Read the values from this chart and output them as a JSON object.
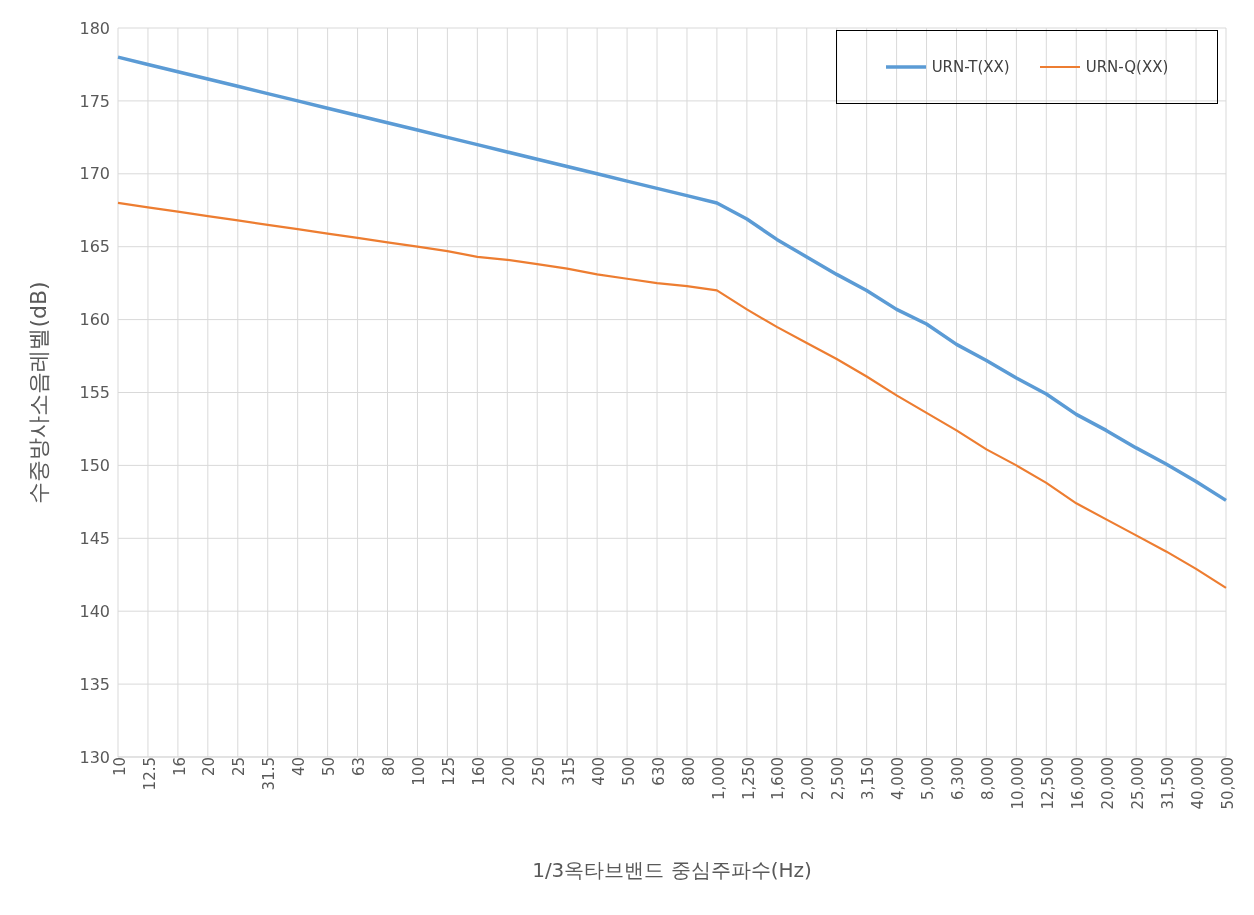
{
  "chart_data": {
    "type": "line",
    "xlabel": "1/3옥타브밴드 중심주파수(Hz)",
    "ylabel": "수중방사소음레벨(dB)",
    "categories": [
      "10",
      "12.5",
      "16",
      "20",
      "25",
      "31.5",
      "40",
      "50",
      "63",
      "80",
      "100",
      "125",
      "160",
      "200",
      "250",
      "315",
      "400",
      "500",
      "630",
      "800",
      "1,000",
      "1,250",
      "1,600",
      "2,000",
      "2,500",
      "3,150",
      "4,000",
      "5,000",
      "6,300",
      "8,000",
      "10,000",
      "12,500",
      "16,000",
      "20,000",
      "25,000",
      "31,500",
      "40,000",
      "50,000"
    ],
    "series": [
      {
        "name": "URN-T(XX)",
        "color": "#5b9bd5",
        "values": [
          178,
          177.5,
          177,
          176.5,
          176,
          175.5,
          175,
          174.5,
          174,
          173.5,
          173,
          172.5,
          172,
          171.5,
          171,
          170.5,
          170,
          169.5,
          169,
          168.5,
          168,
          166.9,
          165.5,
          164.3,
          163.1,
          162.0,
          160.7,
          159.7,
          158.3,
          157.2,
          156.0,
          154.9,
          153.5,
          152.4,
          151.2,
          150.1,
          148.9,
          147.6
        ]
      },
      {
        "name": "URN-Q(XX)",
        "color": "#ed7d31",
        "values": [
          168,
          167.7,
          167.4,
          167.1,
          166.8,
          166.5,
          166.2,
          165.9,
          165.6,
          165.3,
          165.0,
          164.7,
          164.3,
          164.1,
          163.8,
          163.5,
          163.1,
          162.8,
          162.5,
          162.3,
          162.0,
          160.7,
          159.5,
          158.4,
          157.3,
          156.1,
          154.8,
          153.6,
          152.4,
          151.1,
          150.0,
          148.8,
          147.4,
          146.3,
          145.2,
          144.1,
          142.9,
          141.6
        ]
      }
    ],
    "ylim": [
      130,
      180
    ],
    "yticks": [
      130,
      135,
      140,
      145,
      150,
      155,
      160,
      165,
      170,
      175,
      180
    ],
    "grid": true,
    "legend": "top right",
    "marker": "none",
    "line_style": "solid"
  }
}
